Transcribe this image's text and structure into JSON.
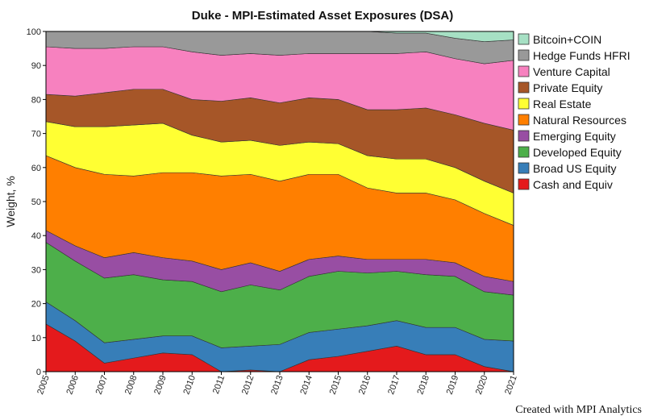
{
  "chart_data": {
    "type": "area",
    "stacked": true,
    "title": "Duke - MPI-Estimated Asset Exposures (DSA)",
    "ylabel": "Weight, %",
    "xlabel": "",
    "ylim": [
      0,
      100
    ],
    "yticks": [
      0,
      10,
      20,
      30,
      40,
      50,
      60,
      70,
      80,
      90,
      100
    ],
    "grid": false,
    "legend_position": "right",
    "credit": "Created with MPI Analytics",
    "x": [
      "2005",
      "2006",
      "2007",
      "2008",
      "2009",
      "2010",
      "2011",
      "2012",
      "2013",
      "2014",
      "2015",
      "2016",
      "2017",
      "2018",
      "2019",
      "2020",
      "2021"
    ],
    "series": [
      {
        "name": "Cash and Equiv",
        "color": "#e41a1c",
        "values": [
          14,
          9,
          2.5,
          4,
          5.5,
          5,
          0,
          0.5,
          0,
          3.5,
          4.5,
          6,
          7.5,
          5,
          5,
          1.5,
          0
        ]
      },
      {
        "name": "Broad US Equity",
        "color": "#377eb8",
        "values": [
          6.5,
          6,
          6,
          5.5,
          5,
          5.5,
          7,
          7,
          8,
          8,
          8,
          7.5,
          7.5,
          8,
          8,
          8,
          9
        ]
      },
      {
        "name": "Developed Equity",
        "color": "#4daf4a",
        "values": [
          17.5,
          17.5,
          19,
          19,
          16.5,
          16,
          16.5,
          18,
          16,
          16.5,
          17,
          15.5,
          14.5,
          15.5,
          15,
          14,
          13.5
        ]
      },
      {
        "name": "Emerging Equity",
        "color": "#984ea3",
        "values": [
          3.5,
          4.5,
          6,
          6.5,
          6.5,
          6,
          6.5,
          6.5,
          5.5,
          5,
          4.5,
          4,
          3.5,
          4.5,
          4,
          4.5,
          4
        ]
      },
      {
        "name": "Natural Resources",
        "color": "#ff7f00",
        "values": [
          22,
          23,
          24.5,
          22.5,
          25,
          26,
          27.5,
          26,
          26.5,
          25,
          24,
          21,
          19.5,
          19.5,
          18.5,
          18.5,
          16.5
        ]
      },
      {
        "name": "Real Estate",
        "color": "#ffff33",
        "values": [
          10,
          12,
          14,
          15,
          14.5,
          11,
          10,
          10,
          10.5,
          9.5,
          9,
          9.5,
          10,
          10,
          9.5,
          9.5,
          9.5
        ]
      },
      {
        "name": "Private Equity",
        "color": "#a65628",
        "values": [
          8,
          9,
          10,
          10.5,
          10,
          10.5,
          12,
          12.5,
          12.5,
          13,
          13,
          13.5,
          14.5,
          15,
          15.5,
          17,
          18.5
        ]
      },
      {
        "name": "Venture Capital",
        "color": "#f781bf",
        "values": [
          14,
          14,
          13,
          12.5,
          12.5,
          14,
          13.5,
          13,
          14,
          13,
          13.5,
          16.5,
          16.5,
          16.5,
          16.5,
          17.5,
          20.5
        ]
      },
      {
        "name": "Hedge Funds HFRI",
        "color": "#999999",
        "values": [
          4.5,
          5,
          5,
          4.5,
          4.5,
          6,
          7,
          6.5,
          7,
          6.5,
          6.5,
          6.5,
          6,
          5.5,
          6,
          6.5,
          6
        ]
      },
      {
        "name": "Bitcoin+COIN",
        "color": "#a6e0c4",
        "values": [
          0,
          0,
          0,
          0,
          0,
          0,
          0,
          0,
          0,
          0,
          0,
          0,
          0.5,
          1,
          2,
          3,
          2.5
        ]
      }
    ]
  }
}
